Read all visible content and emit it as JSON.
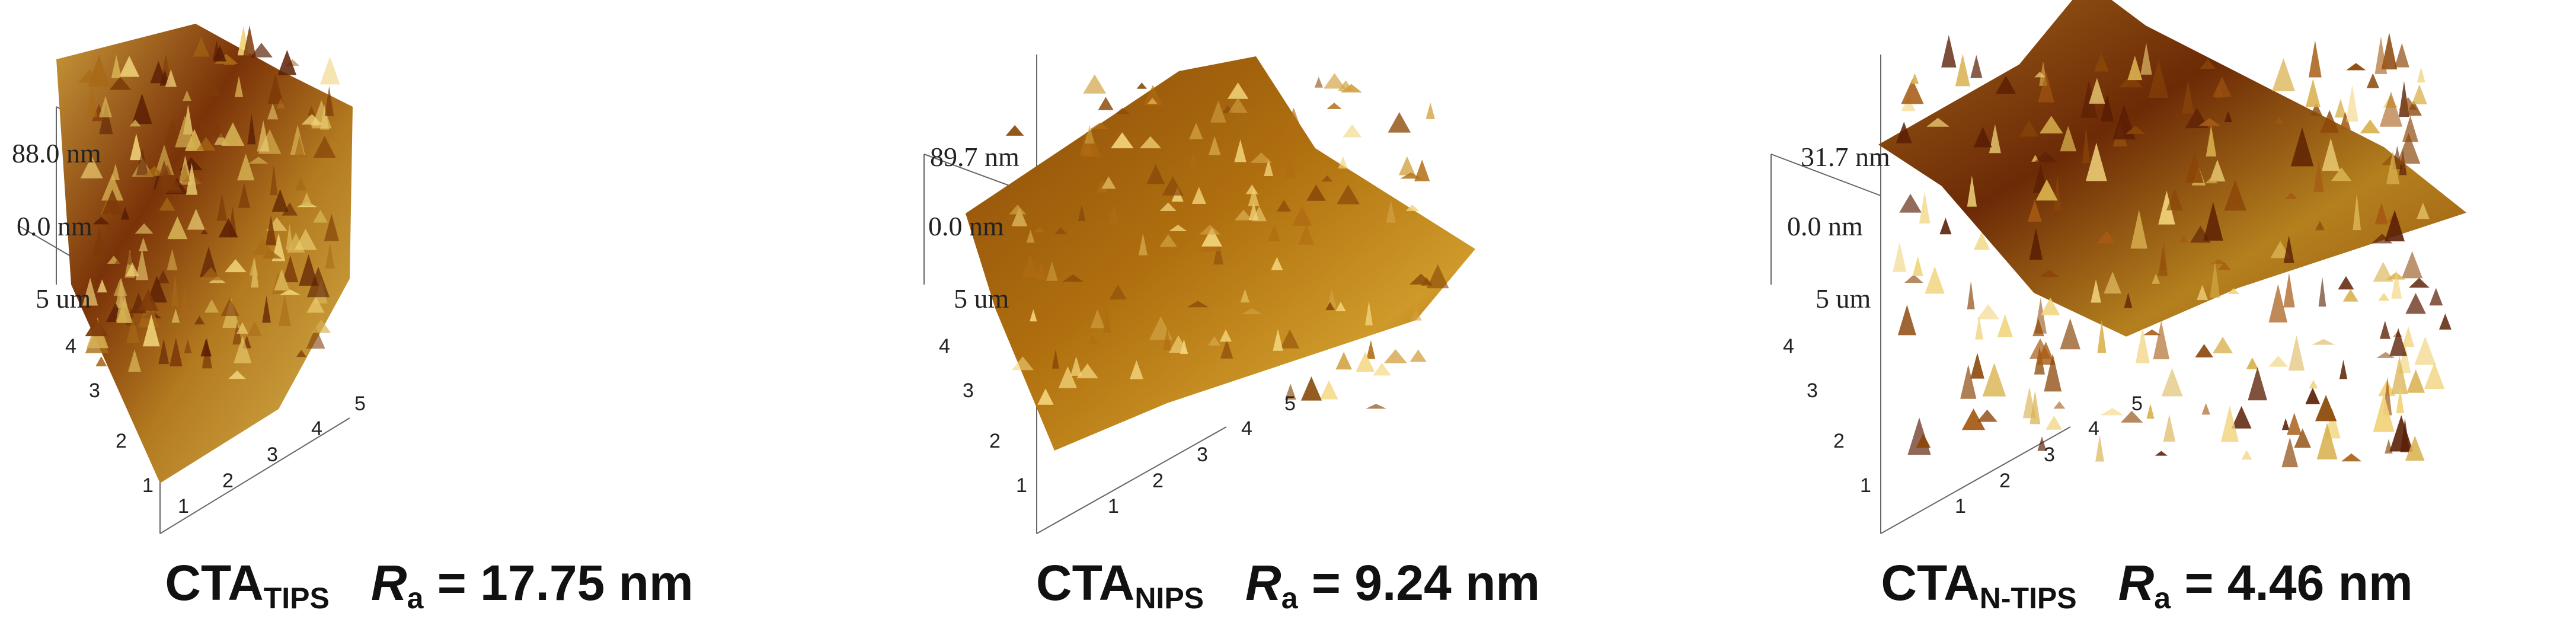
{
  "panels": [
    {
      "z_top": "88.0 nm",
      "z_mid": "0.0 nm",
      "z_bottom": "5 um",
      "caption_main": "CTA",
      "caption_sub": "TIPS",
      "ra_symbol": "R",
      "ra_sub": "a",
      "ra_value": " = 17.75 nm",
      "x_ticks": [
        "1",
        "2",
        "3",
        "4",
        "5"
      ],
      "y_ticks": [
        "1",
        "2",
        "3",
        "4"
      ]
    },
    {
      "z_top": "89.7 nm",
      "z_mid": "0.0 nm",
      "z_bottom": "5 um",
      "caption_main": "CTA",
      "caption_sub": "NIPS",
      "ra_symbol": "R",
      "ra_sub": "a",
      "ra_value": " = 9.24 nm",
      "x_ticks": [
        "1",
        "2",
        "3",
        "4",
        "5"
      ],
      "y_ticks": [
        "1",
        "2",
        "3",
        "4"
      ]
    },
    {
      "z_top": "31.7 nm",
      "z_mid": "0.0 nm",
      "z_bottom": "5 um",
      "caption_main": "CTA",
      "caption_sub": "N-TIPS",
      "ra_symbol": "R",
      "ra_sub": "a",
      "ra_value": " = 4.46 nm",
      "x_ticks": [
        "1",
        "2",
        "3",
        "4",
        "5"
      ],
      "y_ticks": [
        "1",
        "2",
        "3",
        "4"
      ]
    }
  ],
  "colors": {
    "surface_dark": "#5a1e04",
    "surface_mid": "#a8600e",
    "surface_light": "#e6c25a",
    "axis": "#555555"
  }
}
